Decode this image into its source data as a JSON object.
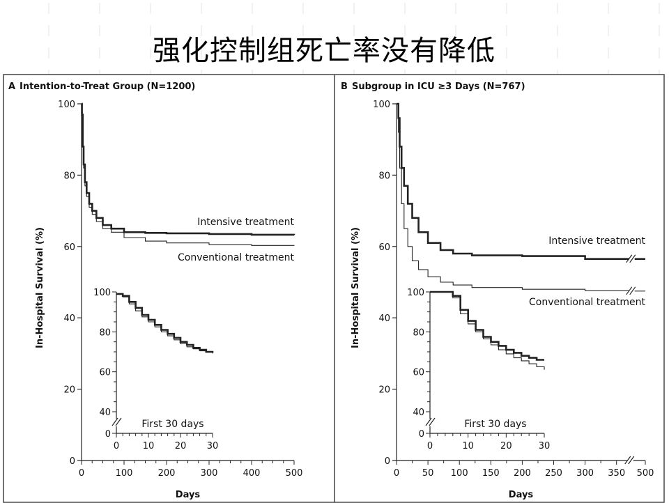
{
  "slide": {
    "title": "强化控制组死亡率没有降低"
  },
  "colors": {
    "curve": "#222222",
    "axis": "#222222",
    "frame": "#444444",
    "grid_bg": "#ececec",
    "logo": "#f5c9a0"
  },
  "chart_data": [
    {
      "type": "line",
      "label": "A",
      "title": "Intention-to-Treat Group (N=1200)",
      "xlabel": "Days",
      "ylabel": "In-Hospital Survival (%)",
      "xlim": [
        0,
        500
      ],
      "ylim": [
        0,
        100
      ],
      "x_ticks": [
        "0",
        "100",
        "200",
        "300",
        "400",
        "500"
      ],
      "y_ticks": [
        "0",
        "20",
        "40",
        "60",
        "80",
        "100"
      ],
      "axis_break": false,
      "series": [
        {
          "name": "Intensive treatment",
          "style": "thick",
          "x": [
            0,
            1,
            3,
            5,
            8,
            12,
            18,
            25,
            35,
            50,
            70,
            100,
            150,
            200,
            300,
            400,
            500
          ],
          "y": [
            100,
            97,
            88,
            83,
            78,
            75,
            72,
            70,
            68,
            66,
            65,
            64,
            63.8,
            63.7,
            63.5,
            63.3,
            63.2
          ]
        },
        {
          "name": "Conventional treatment",
          "style": "thin",
          "x": [
            0,
            1,
            3,
            5,
            8,
            12,
            18,
            25,
            35,
            50,
            70,
            100,
            150,
            200,
            300,
            400,
            500
          ],
          "y": [
            100,
            97,
            88,
            82,
            77,
            74,
            71,
            69,
            67,
            65,
            64,
            62.5,
            61.5,
            61,
            60.5,
            60.3,
            60.2
          ]
        }
      ],
      "inset": {
        "title": "First 30 days",
        "xlim": [
          0,
          30
        ],
        "ylim": [
          0,
          100
        ],
        "y_break": true,
        "x_ticks": [
          "0",
          "10",
          "20",
          "30"
        ],
        "y_ticks": [
          "0",
          "40",
          "60",
          "80",
          "100"
        ],
        "series": [
          {
            "name": "Intensive treatment",
            "style": "thick",
            "x": [
              0,
              2,
              4,
              6,
              8,
              10,
              12,
              14,
              16,
              18,
              20,
              22,
              24,
              26,
              28,
              30
            ],
            "y": [
              99,
              98,
              95,
              92,
              88.5,
              86,
              83.5,
              81,
              79,
              77,
              75,
              73.5,
              72,
              71,
              70,
              69.5
            ]
          },
          {
            "name": "Conventional treatment",
            "style": "thin",
            "x": [
              0,
              2,
              4,
              6,
              8,
              10,
              12,
              14,
              16,
              18,
              20,
              22,
              24,
              26,
              28,
              30
            ],
            "y": [
              99,
              97.5,
              94,
              90.5,
              87.5,
              85,
              82.5,
              80,
              78,
              76,
              74,
              72.5,
              71.5,
              70.5,
              69.8,
              69.2
            ]
          }
        ]
      }
    },
    {
      "type": "line",
      "label": "B",
      "title": "Subgroup in ICU ≥3 Days (N=767)",
      "xlabel": "Days",
      "ylabel": "In-Hospital Survival (%)",
      "xlim": [
        0,
        500
      ],
      "ylim": [
        0,
        100
      ],
      "x_ticks": [
        "0",
        "50",
        "100",
        "150",
        "200",
        "250",
        "300",
        "350",
        "500"
      ],
      "y_ticks": [
        "0",
        "20",
        "40",
        "60",
        "80",
        "100"
      ],
      "axis_break": true,
      "series": [
        {
          "name": "Intensive treatment",
          "style": "thick",
          "x": [
            0,
            3,
            5,
            8,
            12,
            18,
            25,
            35,
            50,
            70,
            90,
            120,
            200,
            300,
            375,
            500
          ],
          "y": [
            100,
            96,
            88,
            82,
            77,
            72,
            68,
            64,
            61,
            59,
            58,
            57.5,
            57.3,
            56.5,
            56.5,
            56.5
          ]
        },
        {
          "name": "Conventional treatment",
          "style": "thin",
          "x": [
            0,
            3,
            5,
            8,
            12,
            18,
            25,
            35,
            50,
            70,
            90,
            120,
            200,
            300,
            375,
            500
          ],
          "y": [
            100,
            92,
            82,
            72,
            65,
            60,
            56,
            53.5,
            51.5,
            50,
            49.2,
            48.5,
            48,
            47.6,
            47.5,
            47.5
          ]
        }
      ],
      "inset": {
        "title": "First 30 days",
        "xlim": [
          0,
          30
        ],
        "ylim": [
          0,
          100
        ],
        "y_break": true,
        "x_ticks": [
          "0",
          "10",
          "20",
          "30"
        ],
        "y_ticks": [
          "0",
          "40",
          "60",
          "80",
          "100"
        ],
        "series": [
          {
            "name": "Intensive treatment",
            "style": "thick",
            "x": [
              0,
              2,
              4,
              6,
              8,
              10,
              12,
              14,
              16,
              18,
              20,
              22,
              24,
              26,
              28,
              30
            ],
            "y": [
              100,
              100,
              100,
              98,
              91,
              85.5,
              81,
              77.5,
              75,
              73,
              71,
              69.5,
              68,
              67,
              66,
              66
            ]
          },
          {
            "name": "Conventional treatment",
            "style": "thin",
            "x": [
              0,
              2,
              4,
              6,
              8,
              10,
              12,
              14,
              16,
              18,
              20,
              22,
              24,
              26,
              28,
              30
            ],
            "y": [
              100,
              100,
              100,
              97,
              89,
              84,
              80,
              76.5,
              73.5,
              71,
              69,
              67,
              65.5,
              64,
              62.5,
              61
            ]
          }
        ]
      }
    }
  ]
}
